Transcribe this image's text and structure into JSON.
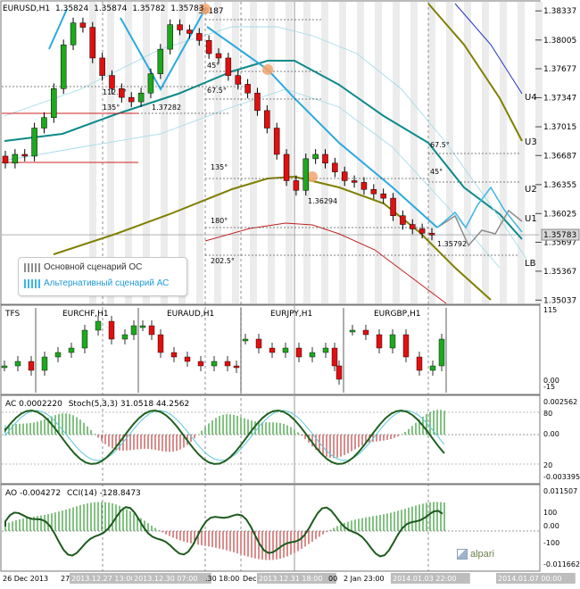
{
  "header": {
    "symbol": "EURUSD,H1",
    "ohlc": [
      "1.35824",
      "1.35874",
      "1.35782",
      "1.35783"
    ]
  },
  "main_chart": {
    "price_ticks": [
      "1.38337",
      "1.38005",
      "1.37677",
      "1.37347",
      "1.37015",
      "1.36687",
      "1.36355",
      "1.36025",
      "1.35697",
      "1.35367",
      "1.35037"
    ],
    "current_price": "1.35783",
    "band_labels": [
      "U4",
      "U3",
      "U2",
      "U1",
      "LB"
    ],
    "fib_labels": [
      "45°",
      "67.5°",
      "112.5°",
      "135°",
      "45°",
      "67.5°",
      "135°",
      "180°",
      "202.5°",
      "67.5°",
      "45°"
    ],
    "price_labels": [
      "38187",
      "1.37282",
      "1.36294",
      "1.35792"
    ],
    "legend": [
      {
        "label": "Основной сценарий ОС",
        "color": "#8c8c8c"
      },
      {
        "label": "Альтернативный сценарий АС",
        "color": "#3fb5e6"
      }
    ]
  },
  "tfs_panel": {
    "title": "TFS",
    "pairs": [
      "EURCHF,H1",
      "EURAUD,H1",
      "EURJPY,H1",
      "EURGBP,H1"
    ],
    "scale": [
      "115",
      "0.00",
      "-15"
    ]
  },
  "ac_panel": {
    "title": "AC 0.0002220",
    "stoch": "Stoch(5,3,3) 31.0518 44.2562",
    "scale_right": [
      "0.002562",
      "80",
      "0.00",
      "20",
      "-0.003395"
    ]
  },
  "ao_panel": {
    "title": "AO -0.004272",
    "cci": "CCI(14) -128.8473",
    "scale_right": [
      "0.011507",
      "100",
      "0.00",
      "-100",
      "-0.011662"
    ]
  },
  "time_axis": [
    "26 Dec 2013",
    "27",
    "2013.12.27 13:00",
    "2013.12.30 07:00",
    ".30 18:00",
    "Dec",
    "2013.12.31 18:00",
    "00",
    "2 Jan 23:00",
    "2014.01.03 22:00",
    "2014.01.07 00:00"
  ],
  "brand": "alpari",
  "chart_data": {
    "type": "line",
    "title": "EURUSD,H1",
    "ylim": [
      1.3504,
      1.3838
    ],
    "key_levels": [
      1.38187,
      1.37282,
      1.36294,
      1.35792
    ],
    "current": 1.35783,
    "close_path": [
      1.366,
      1.367,
      1.3668,
      1.37,
      1.3712,
      1.3745,
      1.3795,
      1.382,
      1.3815,
      1.378,
      1.376,
      1.3745,
      1.3735,
      1.373,
      1.374,
      1.3762,
      1.379,
      1.3818,
      1.3812,
      1.3808,
      1.38,
      1.3785,
      1.378,
      1.376,
      1.375,
      1.374,
      1.372,
      1.37,
      1.367,
      1.364,
      1.3629,
      1.3665,
      1.367,
      1.366,
      1.365,
      1.364,
      1.3638,
      1.363,
      1.3625,
      1.362,
      1.36,
      1.359,
      1.3585,
      1.358,
      1.3578
    ]
  }
}
